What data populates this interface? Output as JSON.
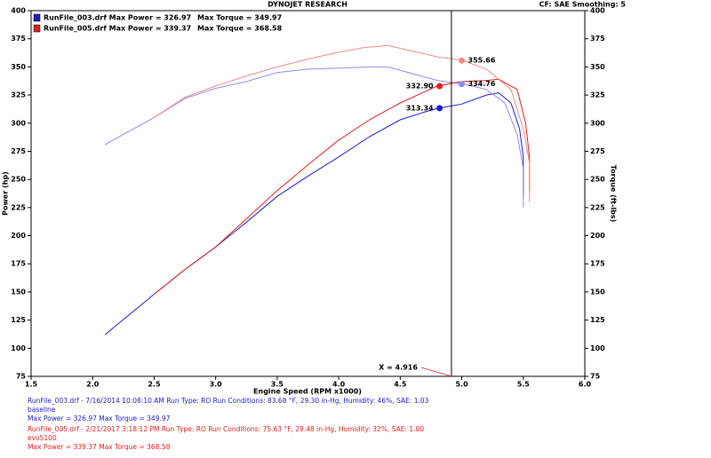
{
  "chart_data": {
    "type": "line",
    "title": "DYNOJET RESEARCH",
    "subtitle": "CF: SAE  Smoothing: 5",
    "x_label": "Engine Speed (RPM x1000)",
    "y_label": "Power (hp)",
    "y2_label": "Torque (ft-lbs)",
    "xlim": [
      1.5,
      6.0
    ],
    "xticks": [
      1.5,
      {
        "value": 2,
        "label": "2.0"
      },
      2.5,
      {
        "value": 3,
        "label": "3.0"
      },
      3.5,
      {
        "value": 4,
        "label": "4.0"
      },
      4.5,
      {
        "value": 5,
        "label": "5.0"
      },
      5.5,
      {
        "value": 6,
        "label": "6.0"
      }
    ],
    "ylim": [
      75,
      400
    ],
    "yticks": [
      75,
      100,
      125,
      150,
      175,
      200,
      225,
      250,
      275,
      300,
      325,
      350,
      375,
      400
    ],
    "y2lim": [
      75,
      400
    ],
    "y2ticks": [
      75,
      100,
      125,
      150,
      175,
      200,
      225,
      250,
      275,
      300,
      325,
      350,
      375,
      400
    ],
    "series": [
      {
        "name": "RunFile_003.drf Max Power = 326.97",
        "color": "#1c1cc8",
        "x": [
          2.1,
          2.3,
          2.5,
          2.75,
          3.0,
          3.25,
          3.5,
          3.75,
          4.0,
          4.25,
          4.5,
          4.7,
          4.8,
          5.0,
          5.2,
          5.3,
          5.4,
          5.47,
          5.5,
          5.5
        ],
        "values": [
          112,
          130,
          148,
          170,
          190,
          212,
          235,
          253,
          270,
          288,
          303,
          310,
          313,
          317,
          325,
          327,
          318,
          295,
          270,
          235
        ]
      },
      {
        "name": "Max Torque = 349.97",
        "color": "#8c8cf0",
        "axis": "y2",
        "x": [
          2.1,
          2.3,
          2.5,
          2.75,
          3.0,
          3.25,
          3.5,
          3.75,
          4.0,
          4.25,
          4.4,
          4.6,
          4.8,
          5.0,
          5.2,
          5.35,
          5.45,
          5.5,
          5.5
        ],
        "values": [
          281,
          293,
          305,
          322,
          331,
          337,
          345,
          348,
          349,
          350,
          350,
          344,
          338,
          335,
          330,
          318,
          290,
          260,
          225
        ]
      },
      {
        "name": "RunFile_005.drf Max Power = 339.37",
        "color": "#e02020",
        "x": [
          2.5,
          2.75,
          3.0,
          3.25,
          3.5,
          3.75,
          4.0,
          4.25,
          4.5,
          4.7,
          4.8,
          5.0,
          5.2,
          5.3,
          5.45,
          5.52,
          5.55,
          5.55
        ],
        "values": [
          148,
          170,
          190,
          215,
          240,
          263,
          285,
          303,
          318,
          328,
          333,
          337,
          338,
          339,
          330,
          300,
          270,
          240
        ]
      },
      {
        "name": "Max Torque = 368.58",
        "color": "#f08a8a",
        "axis": "y2",
        "x": [
          2.5,
          2.75,
          3.0,
          3.25,
          3.5,
          3.75,
          4.0,
          4.2,
          4.4,
          4.6,
          4.8,
          5.0,
          5.2,
          5.4,
          5.5,
          5.55,
          5.55
        ],
        "values": [
          305,
          323,
          333,
          342,
          350,
          357,
          363,
          367,
          369,
          364,
          359,
          356,
          348,
          330,
          295,
          265,
          230
        ]
      }
    ],
    "annotations": [
      {
        "x": 5.0,
        "value": 355.66,
        "color": "#f08a8a"
      },
      {
        "x": 5.0,
        "value": 334.76,
        "color": "#8c8cf0"
      },
      {
        "x": 4.82,
        "value": 332.9,
        "label": "332.90",
        "color": "#e02020"
      },
      {
        "x": 4.82,
        "value": 313.34,
        "color": "#1c1cc8"
      }
    ],
    "cursor": {
      "x": 4.916,
      "label": "X = 4.916"
    },
    "notes": [
      {
        "color": "#1c1cc8",
        "lines": [
          "RunFile_003.drf - 7/16/2014 10:08:10 AM  Run Type: RO  Run Conditions: 83.68 °F, 29.30 in-Hg,  Humidity:  46%,  SAE: 1.03",
          "baseline",
          "Max Power = 326.97  Max Torque = 349.97"
        ]
      },
      {
        "color": "#e02020",
        "lines": [
          "RunFile_005.drf - 2/21/2017 3:18:12 PM  Run Type: RO  Run Conditions: 75.63 °F, 29.48 in-Hg,  Humidity:  32%,  SAE: 1.00",
          "evo5100",
          "Max Power = 339.37  Max Torque = 368.58"
        ]
      }
    ]
  }
}
